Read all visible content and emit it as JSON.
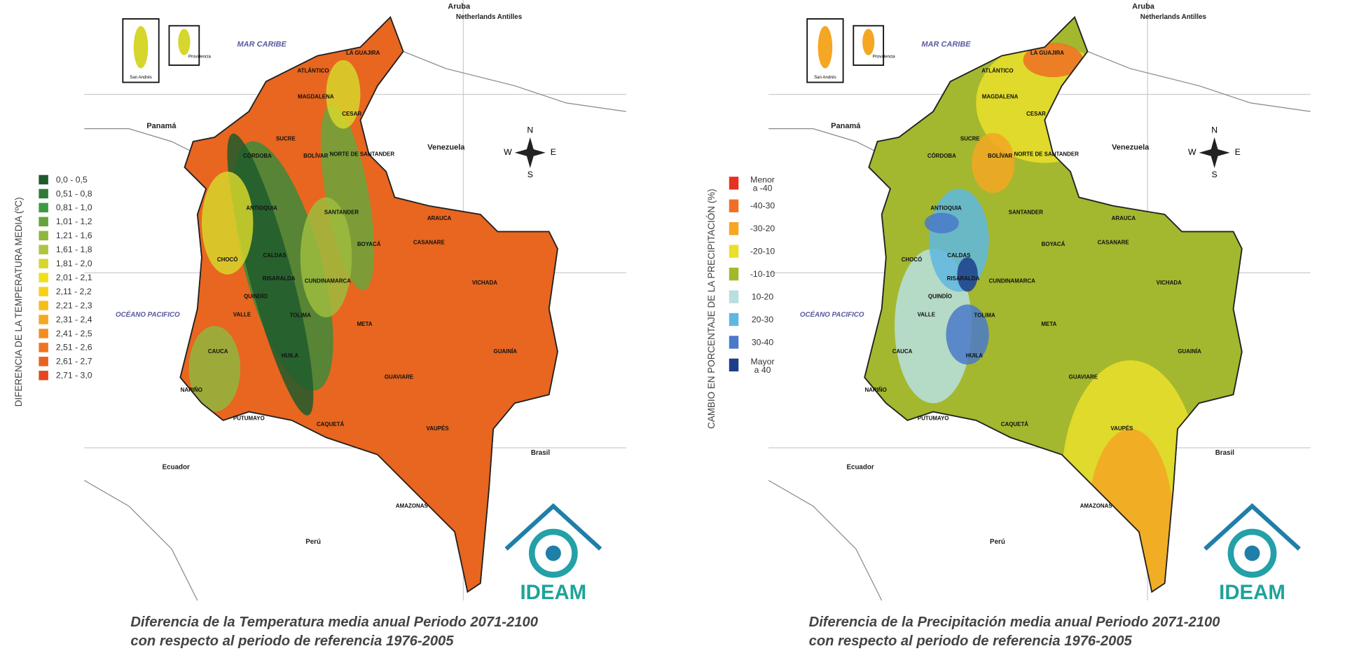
{
  "maps": [
    {
      "legend": {
        "title": "DIFERENCIA DE LA  TEMPERATURA MEDIA (ºC)",
        "items": [
          {
            "label": [
              "0,0 - 0,5"
            ],
            "color": "#1f5a2c"
          },
          {
            "label": [
              "0,51 - 0,8"
            ],
            "color": "#2f7a37"
          },
          {
            "label": [
              "0,81 - 1,0"
            ],
            "color": "#3d9a43"
          },
          {
            "label": [
              "1,01 - 1,2"
            ],
            "color": "#66a33c"
          },
          {
            "label": [
              "1,21 - 1,6"
            ],
            "color": "#8fb63e"
          },
          {
            "label": [
              "1,61 - 1,8"
            ],
            "color": "#aec53f"
          },
          {
            "label": [
              "1,81 - 2,0"
            ],
            "color": "#d6d62c"
          },
          {
            "label": [
              "2,01 - 2,1"
            ],
            "color": "#efe01d"
          },
          {
            "label": [
              "2,11 - 2,2"
            ],
            "color": "#f6d11a"
          },
          {
            "label": [
              "2,21 - 2,3"
            ],
            "color": "#f7bd1a"
          },
          {
            "label": [
              "2,31 - 2,4"
            ],
            "color": "#f5a623"
          },
          {
            "label": [
              "2,41 - 2,5"
            ],
            "color": "#f28d22"
          },
          {
            "label": [
              "2,51 - 2,6"
            ],
            "color": "#ee7523"
          },
          {
            "label": [
              "2,61 - 2,7"
            ],
            "color": "#e9611f"
          },
          {
            "label": [
              "2,71 - 3,0"
            ],
            "color": "#e4461f"
          }
        ]
      },
      "caption": [
        "Diferencia de la Temperatura media anual Periodo 2071-2100",
        "con respecto al periodo de referencia 1976-2005"
      ]
    },
    {
      "legend": {
        "title": "CAMBIO EN PORCENTAJE DE LA PRECIPITACIÓN (%)",
        "items": [
          {
            "label": [
              "Menor",
              "a -40"
            ],
            "color": "#e63222"
          },
          {
            "label": [
              "-40-30"
            ],
            "color": "#ef6f24"
          },
          {
            "label": [
              "-30-20"
            ],
            "color": "#f5a623"
          },
          {
            "label": [
              "-20-10"
            ],
            "color": "#eadf2a"
          },
          {
            "label": [
              "-10-10"
            ],
            "color": "#a3b82e"
          },
          {
            "label": [
              "10-20"
            ],
            "color": "#b9dfe0"
          },
          {
            "label": [
              "20-30"
            ],
            "color": "#5fb7e0"
          },
          {
            "label": [
              "30-40"
            ],
            "color": "#4a79c9"
          },
          {
            "label": [
              "Mayor",
              "a 40"
            ],
            "color": "#1d3e8a"
          }
        ]
      },
      "caption": [
        "Diferencia de la Precipitación media anual Periodo 2071-2100",
        "con respecto al periodo de referencia 1976-2005"
      ]
    }
  ],
  "departments": [
    "LA GUAJIRA",
    "ATLÁNTICO",
    "MAGDALENA",
    "CESAR",
    "SUCRE",
    "CÓRDOBA",
    "BOLÍVAR",
    "NORTE DE SANTANDER",
    "ANTIOQUIA",
    "SANTANDER",
    "ARAUCA",
    "CHOCÓ",
    "CALDAS",
    "BOYACÁ",
    "CASANARE",
    "RISARALDA",
    "CUNDINAMARCA",
    "QUINDÍO",
    "VICHADA",
    "VALLE",
    "TOLIMA",
    "META",
    "CAUCA",
    "HUILA",
    "GUAINÍA",
    "NARIÑO",
    "GUAVIARE",
    "PUTUMAYO",
    "CAQUETÁ",
    "VAUPÉS",
    "AMAZONAS"
  ],
  "neighbors": [
    "Aruba",
    "Netherlands Antilles",
    "MAR CARIBE",
    "Panamá",
    "Venezuela",
    "OCÉANO PACIFICO",
    "Ecuador",
    "Perú",
    "Brasil"
  ],
  "insets": [
    "San Andrés",
    "Providencia"
  ],
  "compass": [
    "N",
    "E",
    "S",
    "W"
  ],
  "logo": "IDEAM"
}
